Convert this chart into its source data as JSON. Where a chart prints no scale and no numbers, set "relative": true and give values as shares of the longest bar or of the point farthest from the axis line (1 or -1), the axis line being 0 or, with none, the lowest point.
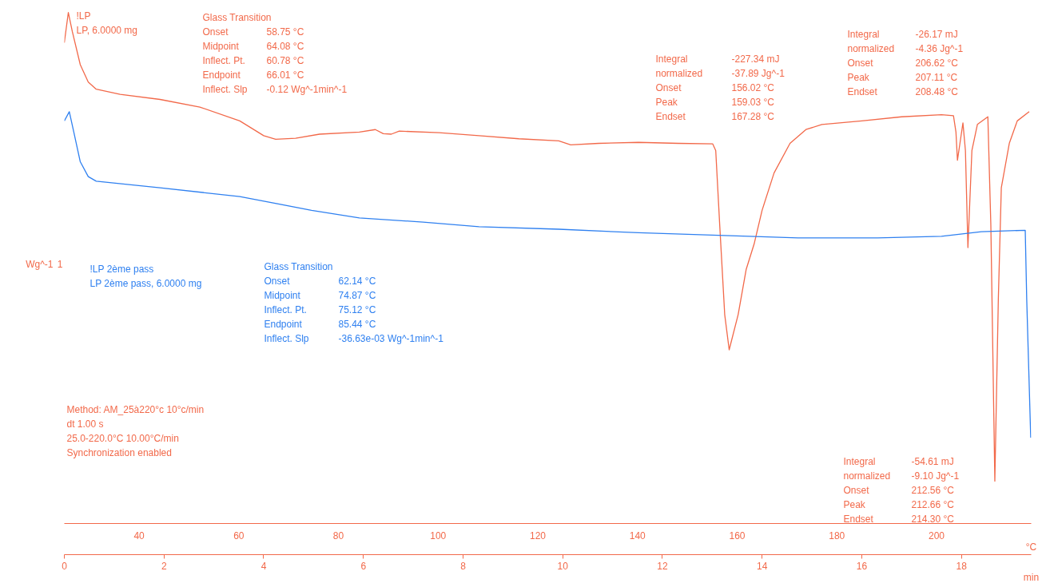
{
  "chart_data": {
    "type": "line",
    "relative": true,
    "xlabel": "min",
    "x2label": "°C",
    "ylabel": "Wg^-1",
    "xlim": [
      0,
      19.4
    ],
    "xticks": [
      0,
      2,
      4,
      6,
      8,
      10,
      12,
      14,
      16,
      18
    ],
    "x2lim": [
      25,
      219
    ],
    "x2ticks": [
      40,
      60,
      80,
      100,
      120,
      140,
      160,
      180,
      200
    ],
    "grid": false,
    "legend": false,
    "marker": "none",
    "line_style": "solid",
    "series": [
      {
        "name": "LP, 6.0000 mg",
        "color": "#f2694a",
        "x": [
          0.0,
          0.08,
          0.16,
          0.32,
          0.48,
          0.64,
          1.12,
          1.92,
          2.72,
          3.52,
          4.0,
          4.24,
          4.64,
          5.12,
          5.92,
          6.24,
          6.4,
          6.56,
          6.72,
          7.52,
          8.32,
          9.12,
          9.92,
          10.16,
          10.72,
          11.52,
          12.32,
          13.01,
          13.07,
          13.15,
          13.25,
          13.34,
          13.52,
          13.68,
          13.84,
          14.0,
          14.24,
          14.56,
          14.88,
          15.2,
          16.0,
          16.8,
          17.6,
          17.84,
          17.89,
          17.92,
          17.97,
          18.03,
          18.08,
          18.13,
          18.21,
          18.32,
          18.53,
          18.59,
          18.67,
          18.74,
          18.8,
          18.96,
          19.12,
          19.36
        ],
        "values": [
          0.941,
          1.0,
          0.963,
          0.898,
          0.864,
          0.85,
          0.84,
          0.83,
          0.815,
          0.788,
          0.759,
          0.752,
          0.754,
          0.762,
          0.766,
          0.771,
          0.763,
          0.762,
          0.768,
          0.765,
          0.759,
          0.753,
          0.749,
          0.741,
          0.744,
          0.746,
          0.744,
          0.743,
          0.73,
          0.584,
          0.409,
          0.34,
          0.409,
          0.497,
          0.547,
          0.613,
          0.686,
          0.744,
          0.771,
          0.781,
          0.788,
          0.796,
          0.8,
          0.798,
          0.766,
          0.711,
          0.744,
          0.784,
          0.73,
          0.54,
          0.73,
          0.781,
          0.796,
          0.584,
          0.083,
          0.438,
          0.657,
          0.744,
          0.788,
          0.806
        ]
      },
      {
        "name": "LP 2ème pass, 6.0000 mg",
        "color": "#2f80f0",
        "x": [
          0.0,
          0.1,
          0.19,
          0.32,
          0.48,
          0.64,
          1.92,
          3.52,
          4.96,
          5.92,
          7.2,
          8.32,
          9.92,
          11.52,
          13.12,
          14.72,
          16.32,
          17.6,
          18.4,
          19.28,
          19.31,
          19.39
        ],
        "values": [
          0.788,
          0.806,
          0.766,
          0.708,
          0.679,
          0.67,
          0.657,
          0.64,
          0.613,
          0.598,
          0.59,
          0.581,
          0.576,
          0.569,
          0.564,
          0.559,
          0.559,
          0.562,
          0.571,
          0.574,
          0.438,
          0.168
        ]
      }
    ],
    "annotations": [
      "!LP",
      "Glass Transition\nOnset\t58.75 °C\nMidpoint\t64.08 °C\nInflect. Pt.\t60.78 °C\nEndpoint\t66.01 °C\nInflect. Slp\t-0.12 Wg^-1min^-1",
      "Integral\t-227.34 mJ\n  normalized\t-37.89 Jg^-1\nOnset\t156.02 °C\nPeak\t159.03 °C\nEndset\t167.28 °C",
      "Integral\t-26.17 mJ\n  normalized\t-4.36 Jg^-1\nOnset\t206.62 °C\nPeak\t207.11 °C\nEndset\t208.48 °C",
      "Integral\t-54.61 mJ\n  normalized\t-9.10 Jg^-1\nOnset\t212.56 °C\nPeak\t212.66 °C\nEndset\t214.30 °C",
      "Method: AM_25à220°c 10°c/min\ndt 1.00 s\n  25.0-220.0°C 10.00°C/min\nSynchronization enabled",
      "!LP 2ème pass",
      "Glass Transition\nOnset\t62.14 °C\nMidpoint\t74.87 °C\nInflect. Pt.\t75.12 °C\nEndpoint\t85.44 °C\nInflect. Slp\t-36.63e-03 Wg^-1min^-1",
      "1"
    ]
  }
}
